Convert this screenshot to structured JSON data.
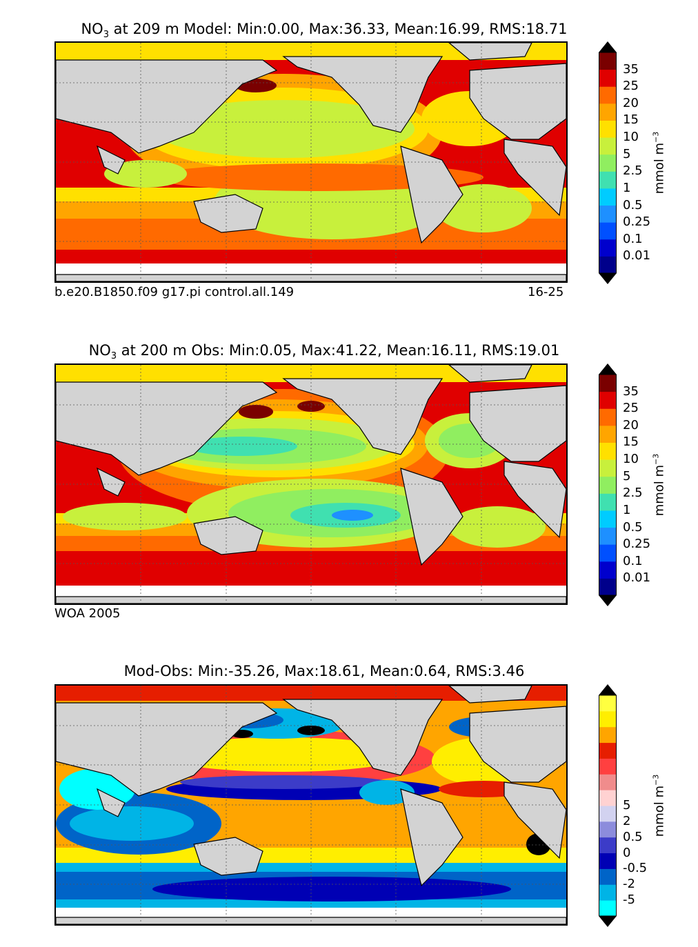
{
  "chart_data": [
    {
      "type": "heatmap",
      "title_prefix": "NO",
      "title_subscript": "3",
      "title_suffix": " at 209 m Model: Min:0.00, Max:36.33, Mean:16.99, RMS:18.71",
      "stats": {
        "min": 0.0,
        "max": 36.33,
        "mean": 16.99,
        "rms": 18.71
      },
      "footer_left": "b.e20.B1850.f09 g17.pi control.all.149",
      "footer_right": "16-25",
      "colorbar_levels": [
        "0.01",
        "0.1",
        "0.25",
        "0.5",
        "1",
        "2.5",
        "5",
        "10",
        "15",
        "20",
        "25",
        "35"
      ],
      "colorbar_colors": [
        "#00008b",
        "#0000cd",
        "#0050ff",
        "#1e90ff",
        "#00ccff",
        "#40e0b0",
        "#90ee60",
        "#c8f03c",
        "#ffe000",
        "#ffa500",
        "#ff6a00",
        "#e00000",
        "#7a0000"
      ],
      "colorbar_unit": "mmol m",
      "colorbar_unit_sup": "−3",
      "grid": true
    },
    {
      "type": "heatmap",
      "title_prefix": "NO",
      "title_subscript": "3",
      "title_suffix": " at 200 m Obs: Min:0.05, Max:41.22, Mean:16.11, RMS:19.01",
      "stats": {
        "min": 0.05,
        "max": 41.22,
        "mean": 16.11,
        "rms": 19.01
      },
      "footer_left": "WOA 2005",
      "colorbar_levels": [
        "0.01",
        "0.1",
        "0.25",
        "0.5",
        "1",
        "2.5",
        "5",
        "10",
        "15",
        "20",
        "25",
        "35"
      ],
      "colorbar_colors": [
        "#00008b",
        "#0000cd",
        "#0050ff",
        "#1e90ff",
        "#00ccff",
        "#40e0b0",
        "#90ee60",
        "#c8f03c",
        "#ffe000",
        "#ffa500",
        "#ff6a00",
        "#e00000",
        "#7a0000"
      ],
      "colorbar_unit": "mmol m",
      "colorbar_unit_sup": "−3",
      "grid": true
    },
    {
      "type": "heatmap",
      "title": "Mod-Obs: Min:-35.26, Max:18.61, Mean:0.64, RMS:3.46",
      "stats": {
        "min": -35.26,
        "max": 18.61,
        "mean": 0.64,
        "rms": 3.46
      },
      "colorbar_levels": [
        "-5",
        "-2",
        "-0.5",
        "0",
        "0.5",
        "2",
        "5"
      ],
      "colorbar_colors": [
        "#00ffff",
        "#00b4e6",
        "#0064c8",
        "#0000b4",
        "#3c3cc8",
        "#8c8cdc",
        "#d2d2f0",
        "#ffd2d2",
        "#f08c8c",
        "#ff4040",
        "#e61e00",
        "#ffa500",
        "#ffee00",
        "#ffff40"
      ],
      "colorbar_unit": "mmol m",
      "colorbar_unit_sup": "−3",
      "grid": true
    }
  ]
}
